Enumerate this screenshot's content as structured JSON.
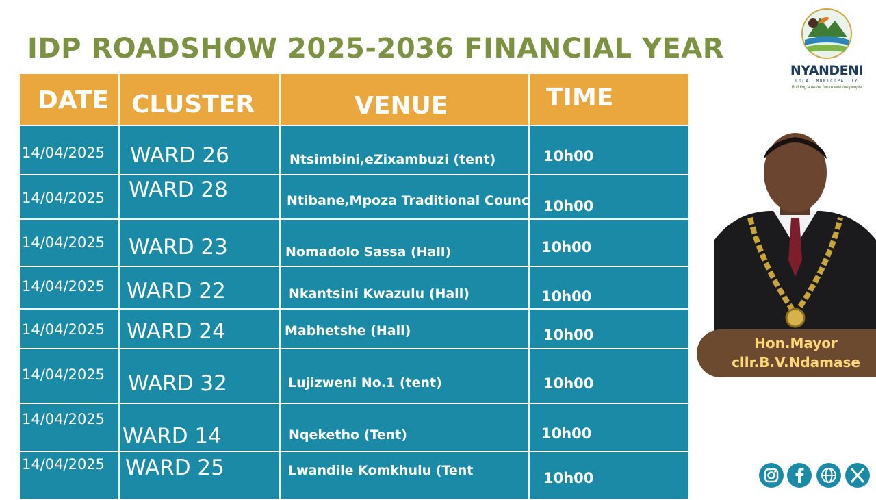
{
  "title": "IDP ROADSHOW 2025-2036 FINANCIAL YEAR",
  "headers": {
    "date": "DATE",
    "cluster": "CLUSTER",
    "venue": "VENUE",
    "time": "TIME"
  },
  "rows": [
    {
      "date": "14/04/2025",
      "cluster": "WARD 26",
      "venue": "Ntsimbini,eZixambuzi (tent)",
      "time": "10h00"
    },
    {
      "date": "14/04/2025",
      "cluster": "WARD 28",
      "venue": "Ntibane,Mpoza Traditional Council",
      "time": "10h00"
    },
    {
      "date": "14/04/2025",
      "cluster": "WARD 23",
      "venue": "Nomadolo Sassa (Hall)",
      "time": "10h00"
    },
    {
      "date": "14/04/2025",
      "cluster": "WARD 22",
      "venue": "Nkantsini Kwazulu (Hall)",
      "time": "10h00"
    },
    {
      "date": "14/04/2025",
      "cluster": "WARD 24",
      "venue": "Mabhetshe (Hall)",
      "time": "10h00"
    },
    {
      "date": "14/04/2025",
      "cluster": "WARD 32",
      "venue": "Lujizweni No.1 (tent)",
      "time": "10h00"
    },
    {
      "date": "14/04/2025",
      "cluster": "WARD 14",
      "venue": "Nqeketho (Tent)",
      "time": "10h00"
    },
    {
      "date": "14/04/2025",
      "cluster": "WARD 25",
      "venue": "Lwandile Komkhulu (Tent",
      "time": "10h00"
    }
  ],
  "logo": {
    "name": "NYANDENI",
    "subtitle": "LOCAL MUNICIPALITY",
    "tagline": "Building a better future with the people"
  },
  "mayor": {
    "line1": "Hon.Mayor",
    "line2": "cllr.B.V.Ndamase"
  },
  "social_icons": [
    "instagram-icon",
    "facebook-icon",
    "web-icon",
    "x-icon"
  ],
  "colors": {
    "title": "#7c9142",
    "header_bg": "#e9a73d",
    "row_bg": "#1a8aa6",
    "caption_bg": "#6b4a2f",
    "caption_text": "#ffd77a"
  }
}
